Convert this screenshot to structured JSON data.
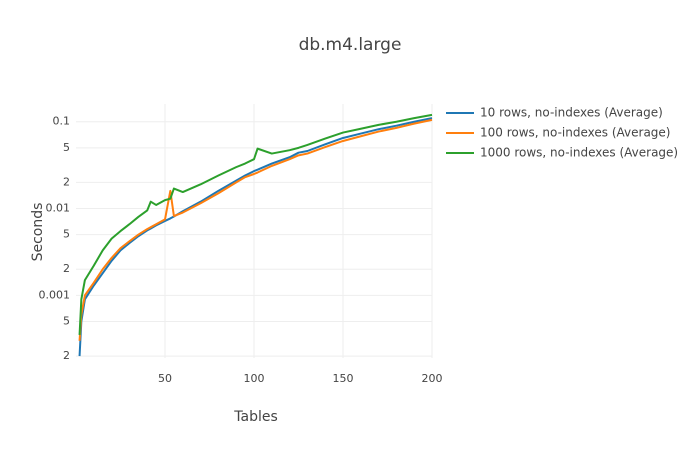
{
  "chart_data": {
    "type": "line",
    "title": "db.m4.large",
    "x_label": "Tables",
    "y_label": "Seconds",
    "x": [
      2,
      3,
      5,
      10,
      15,
      20,
      25,
      30,
      35,
      40,
      42,
      45,
      50,
      53,
      55,
      60,
      70,
      80,
      90,
      95,
      100,
      102,
      110,
      120,
      125,
      130,
      140,
      150,
      160,
      170,
      180,
      190,
      200
    ],
    "series": [
      {
        "name": "10 rows, no-indexes (Average)",
        "color": "#1f77b4",
        "values": [
          0.0002,
          0.0005,
          0.0009,
          0.0013,
          0.0018,
          0.0025,
          0.0033,
          0.004,
          0.0048,
          0.0056,
          0.0059,
          0.0064,
          0.0072,
          0.0077,
          0.0081,
          0.0093,
          0.012,
          0.016,
          0.021,
          0.024,
          0.027,
          0.028,
          0.033,
          0.039,
          0.044,
          0.046,
          0.055,
          0.065,
          0.073,
          0.082,
          0.09,
          0.1,
          0.11
        ]
      },
      {
        "name": "100 rows, no-indexes (Average)",
        "color": "#ff7f0e",
        "values": [
          0.0003,
          0.0006,
          0.001,
          0.0014,
          0.002,
          0.0027,
          0.0035,
          0.0042,
          0.005,
          0.0058,
          0.0061,
          0.0066,
          0.0075,
          0.016,
          0.0082,
          0.009,
          0.0115,
          0.015,
          0.02,
          0.023,
          0.025,
          0.026,
          0.031,
          0.037,
          0.041,
          0.043,
          0.051,
          0.06,
          0.068,
          0.077,
          0.085,
          0.095,
          0.105
        ]
      },
      {
        "name": "1000 rows, no-indexes (Average)",
        "color": "#2ca02c",
        "values": [
          0.00035,
          0.0009,
          0.0015,
          0.0022,
          0.0033,
          0.0045,
          0.0055,
          0.0066,
          0.008,
          0.0095,
          0.012,
          0.011,
          0.0125,
          0.013,
          0.017,
          0.0155,
          0.019,
          0.024,
          0.03,
          0.033,
          0.037,
          0.049,
          0.043,
          0.047,
          0.05,
          0.054,
          0.064,
          0.075,
          0.083,
          0.092,
          0.1,
          0.11,
          0.12
        ]
      }
    ],
    "xlim": [
      0,
      200
    ],
    "xticks": [
      50,
      100,
      150,
      200
    ],
    "ylim": [
      0.00019,
      0.16
    ],
    "log_y": true,
    "yticks": [
      {
        "value": 0.0002,
        "label": "2"
      },
      {
        "value": 0.0005,
        "label": "5"
      },
      0.001,
      {
        "value": 0.002,
        "label": "2"
      },
      {
        "value": 0.005,
        "label": "5"
      },
      0.01,
      {
        "value": 0.02,
        "label": "2"
      },
      {
        "value": 0.05,
        "label": "5"
      },
      0.1
    ],
    "grid": true,
    "legend": "right"
  }
}
